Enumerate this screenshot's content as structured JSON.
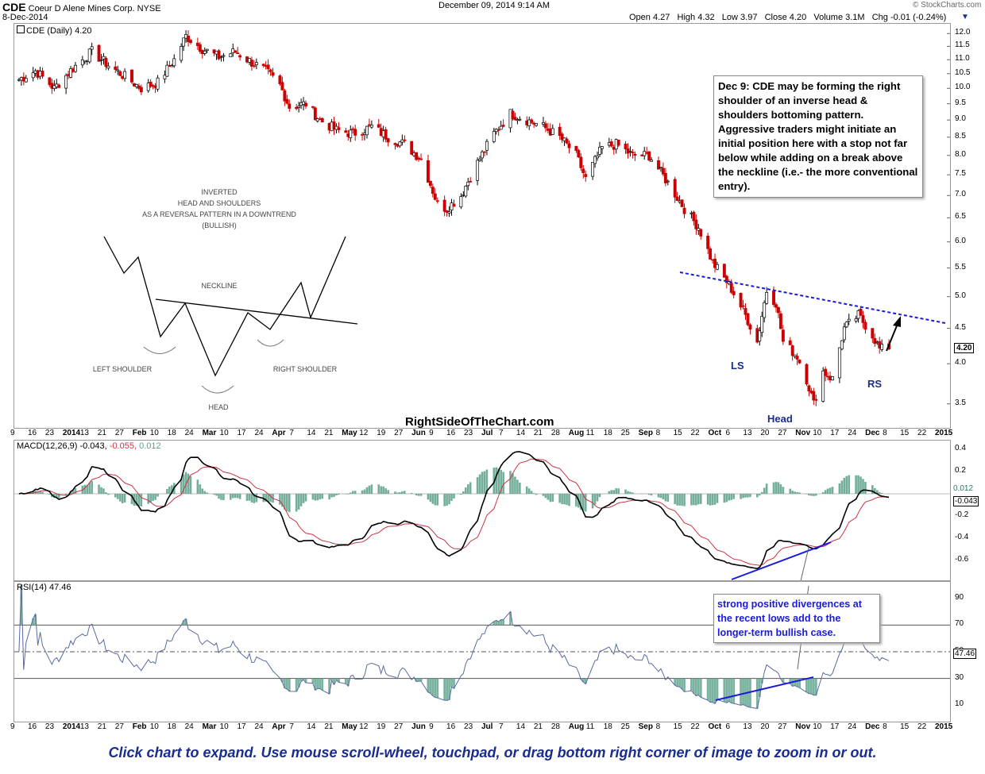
{
  "header": {
    "symbol": "CDE",
    "company": "Coeur D Alene Mines Corp.",
    "exchange": "NYSE",
    "date": "8-Dec-2014",
    "timestamp": "December 09, 2014 9:14 AM",
    "quote": "Open 4.27   High 4.32   Low 3.97   Close 4.20   Volume 3.1M   Chg -0.01 (-0.24%)",
    "brand": "© StockCharts.com"
  },
  "price_panel": {
    "legend": "CDE (Daily) 4.20",
    "last_price_tag": "4.20",
    "watermark": "RightSideOfTheChart.com",
    "ann_dec9": "Dec 9: CDE may be forming the right shoulder of an inverse head & shoulders bottoming pattern. Aggressive traders might initiate an initial position here with a stop not far below while adding on a break above the neckline (i.e.- the more conventional entry).",
    "label_ls": "LS",
    "label_head": "Head",
    "label_rs": "RS",
    "diagram": {
      "title1": "INVERTED",
      "title2": "HEAD AND SHOULDERS",
      "title3": "AS A REVERSAL PATTERN IN A DOWNTREND",
      "title4": "(BULLISH)",
      "neckline": "NECKLINE",
      "left": "LEFT SHOULDER",
      "head": "HEAD",
      "right": "RIGHT SHOULDER"
    }
  },
  "macd_panel": {
    "legend_main": "MACD(12,26,9) -0.043,",
    "legend_signal": "-0.055,",
    "legend_hist": "0.012",
    "tag_hist": "0.012",
    "tag_macd": "-0.043"
  },
  "rsi_panel": {
    "legend": "RSI(14) 47.46",
    "tag": "47.46",
    "ann": "strong positive divergences at the recent lows add to the longer-term bullish case."
  },
  "footer": "Click chart to expand. Use mouse scroll-wheel, touchpad, or drag bottom right corner of image to zoom in or out.",
  "colors": {
    "up": "#ffffff",
    "down": "#cc0000",
    "macd": "#000000",
    "signal": "#cc3344",
    "hist": "#5aa08a",
    "rsi": "#5a6aa0",
    "trend": "#1a1adc",
    "neckline": "#1a1adc"
  },
  "chart_data": [
    {
      "type": "candlestick",
      "title": "CDE (Daily) 4.20",
      "yscale": "log",
      "ylim": [
        3.3,
        12.2
      ],
      "yticks": [
        12.0,
        11.5,
        11.0,
        10.5,
        10.0,
        9.5,
        9.0,
        8.5,
        8.0,
        7.5,
        7.0,
        6.5,
        6.0,
        5.5,
        5.0,
        4.5,
        4.0,
        3.5
      ],
      "xticks": [
        "9",
        "16",
        "23",
        "2014",
        "13",
        "21",
        "27",
        "Feb",
        "10",
        "18",
        "24",
        "Mar",
        "10",
        "17",
        "24",
        "Apr",
        "7",
        "14",
        "21",
        "May",
        "12",
        "19",
        "27",
        "Jun",
        "9",
        "16",
        "23",
        "Jul",
        "7",
        "14",
        "21",
        "28",
        "Aug",
        "11",
        "18",
        "25",
        "Sep",
        "8",
        "15",
        "22",
        "Oct",
        "6",
        "13",
        "20",
        "27",
        "Nov",
        "10",
        "17",
        "24",
        "Dec",
        "8",
        "15",
        "22",
        "2015"
      ],
      "anchors": [
        {
          "date": "2013-12-03",
          "close": 10.3
        },
        {
          "date": "2013-12-10",
          "close": 10.6
        },
        {
          "date": "2013-12-18",
          "close": 10.0
        },
        {
          "date": "2013-12-26",
          "close": 10.7
        },
        {
          "date": "2014-01-03",
          "close": 11.3
        },
        {
          "date": "2014-01-10",
          "close": 10.8
        },
        {
          "date": "2014-01-17",
          "close": 10.4
        },
        {
          "date": "2014-01-24",
          "close": 10.0
        },
        {
          "date": "2014-01-31",
          "close": 10.2
        },
        {
          "date": "2014-02-07",
          "close": 11.0
        },
        {
          "date": "2014-02-12",
          "close": 11.9
        },
        {
          "date": "2014-02-19",
          "close": 11.4
        },
        {
          "date": "2014-02-26",
          "close": 11.1
        },
        {
          "date": "2014-03-05",
          "close": 11.3
        },
        {
          "date": "2014-03-12",
          "close": 10.9
        },
        {
          "date": "2014-03-18",
          "close": 10.6
        },
        {
          "date": "2014-03-24",
          "close": 10.1
        },
        {
          "date": "2014-03-28",
          "close": 9.4
        },
        {
          "date": "2014-04-04",
          "close": 9.5
        },
        {
          "date": "2014-04-10",
          "close": 9.0
        },
        {
          "date": "2014-04-17",
          "close": 8.7
        },
        {
          "date": "2014-04-24",
          "close": 8.6
        },
        {
          "date": "2014-05-02",
          "close": 8.8
        },
        {
          "date": "2014-05-09",
          "close": 8.5
        },
        {
          "date": "2014-05-16",
          "close": 8.3
        },
        {
          "date": "2014-05-23",
          "close": 7.9
        },
        {
          "date": "2014-05-30",
          "close": 6.8
        },
        {
          "date": "2014-06-03",
          "close": 6.7
        },
        {
          "date": "2014-06-09",
          "close": 7.0
        },
        {
          "date": "2014-06-16",
          "close": 7.8
        },
        {
          "date": "2014-06-23",
          "close": 8.6
        },
        {
          "date": "2014-06-30",
          "close": 9.2
        },
        {
          "date": "2014-07-07",
          "close": 9.0
        },
        {
          "date": "2014-07-14",
          "close": 8.8
        },
        {
          "date": "2014-07-21",
          "close": 8.5
        },
        {
          "date": "2014-07-28",
          "close": 8.0
        },
        {
          "date": "2014-08-01",
          "close": 7.4
        },
        {
          "date": "2014-08-08",
          "close": 8.2
        },
        {
          "date": "2014-08-14",
          "close": 8.3
        },
        {
          "date": "2014-08-21",
          "close": 8.0
        },
        {
          "date": "2014-08-28",
          "close": 8.0
        },
        {
          "date": "2014-09-05",
          "close": 7.3
        },
        {
          "date": "2014-09-12",
          "close": 6.7
        },
        {
          "date": "2014-09-18",
          "close": 6.3
        },
        {
          "date": "2014-09-24",
          "close": 5.6
        },
        {
          "date": "2014-10-01",
          "close": 5.2
        },
        {
          "date": "2014-10-08",
          "close": 4.7
        },
        {
          "date": "2014-10-13",
          "close": 4.3
        },
        {
          "date": "2014-10-17",
          "close": 5.1
        },
        {
          "date": "2014-10-21",
          "close": 4.9
        },
        {
          "date": "2014-10-24",
          "close": 4.3
        },
        {
          "date": "2014-10-30",
          "close": 4.1
        },
        {
          "date": "2014-11-03",
          "close": 3.8
        },
        {
          "date": "2014-11-06",
          "close": 3.5
        },
        {
          "date": "2014-11-10",
          "close": 3.9
        },
        {
          "date": "2014-11-14",
          "close": 3.8
        },
        {
          "date": "2014-11-19",
          "close": 4.5
        },
        {
          "date": "2014-11-25",
          "close": 4.7
        },
        {
          "date": "2014-12-01",
          "close": 4.4
        },
        {
          "date": "2014-12-04",
          "close": 4.2
        },
        {
          "date": "2014-12-08",
          "close": 4.2
        }
      ]
    },
    {
      "type": "line",
      "title": "MACD(12,26,9) -0.043, -0.055, 0.012",
      "ylim": [
        -0.75,
        0.45
      ],
      "yticks": [
        0.4,
        0.2,
        -0.2,
        -0.4,
        -0.6
      ]
    },
    {
      "type": "line",
      "title": "RSI(14) 47.46",
      "ylim": [
        0,
        100
      ],
      "yticks": [
        90,
        70,
        50,
        30,
        10
      ],
      "levels": [
        70,
        30
      ]
    }
  ]
}
